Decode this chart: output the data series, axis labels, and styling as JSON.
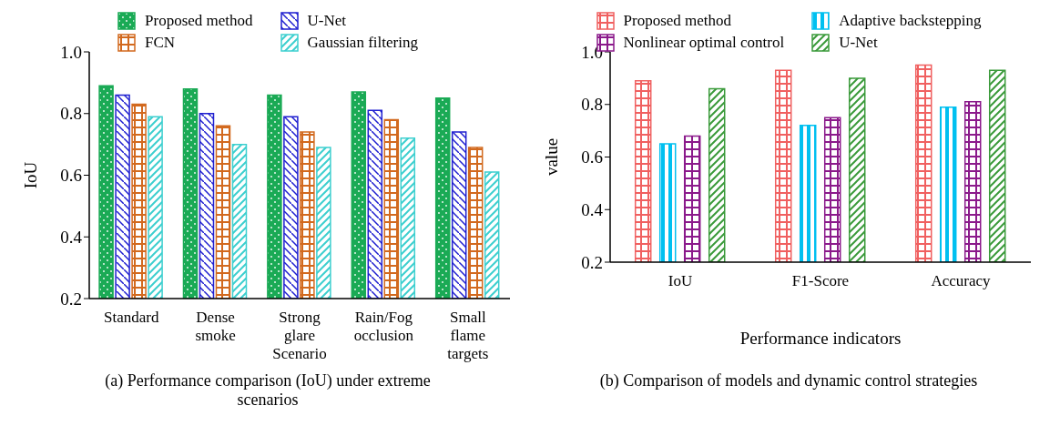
{
  "chart_data": [
    {
      "type": "bar",
      "title": "(a) Performance comparison (IoU) under extreme scenarios",
      "ylabel": "IoU",
      "categories": [
        "Standard",
        "Dense smoke",
        "Strong glare Scenario",
        "Rain/Fog occlusion",
        "Small flame targets"
      ],
      "series": [
        {
          "name": "Proposed method",
          "color": "#1aaa55",
          "values": [
            0.89,
            0.88,
            0.86,
            0.87,
            0.85
          ]
        },
        {
          "name": "U-Net",
          "color": "#1f1fd0",
          "values": [
            0.86,
            0.8,
            0.79,
            0.81,
            0.74
          ]
        },
        {
          "name": "FCN",
          "color": "#d2691e",
          "values": [
            0.83,
            0.76,
            0.74,
            0.78,
            0.69
          ]
        },
        {
          "name": "Gaussian filtering",
          "color": "#3ccfcf",
          "values": [
            0.79,
            0.7,
            0.69,
            0.72,
            0.61
          ]
        }
      ],
      "ylim": [
        0.2,
        1.0
      ],
      "yticks": [
        {
          "value": 0.2,
          "label": "0.2"
        },
        {
          "value": 0.4,
          "label": "0.4"
        },
        {
          "value": 0.6,
          "label": "0.6"
        },
        {
          "value": 0.8,
          "label": "0.8"
        },
        {
          "value": 1.0,
          "label": "1.0"
        }
      ],
      "legend": "top",
      "grid": false
    },
    {
      "type": "bar",
      "title": "(b) Comparison of models and dynamic control strategies",
      "xlabel": "Performance indicators",
      "ylabel": "value",
      "categories": [
        "IoU",
        "F1-Score",
        "Accuracy"
      ],
      "series": [
        {
          "name": "Proposed method",
          "color": "#f06060",
          "values": [
            0.89,
            0.93,
            0.95
          ]
        },
        {
          "name": "Adaptive backstepping",
          "color": "#00c0f0",
          "values": [
            0.65,
            0.72,
            0.79
          ]
        },
        {
          "name": "Nonlinear optimal control",
          "color": "#8b1a8b",
          "values": [
            0.68,
            0.75,
            0.81
          ]
        },
        {
          "name": "U-Net",
          "color": "#3a9a3a",
          "values": [
            0.86,
            0.9,
            0.93
          ]
        }
      ],
      "ylim": [
        0.2,
        1.0
      ],
      "yticks": [
        {
          "value": 0.2,
          "label": "0.2"
        },
        {
          "value": 0.4,
          "label": "0.4"
        },
        {
          "value": 0.6,
          "label": "0.6"
        },
        {
          "value": 0.8,
          "label": "0.8"
        },
        {
          "value": 1.0,
          "label": "1.0"
        }
      ],
      "legend": "top",
      "grid": false
    }
  ]
}
